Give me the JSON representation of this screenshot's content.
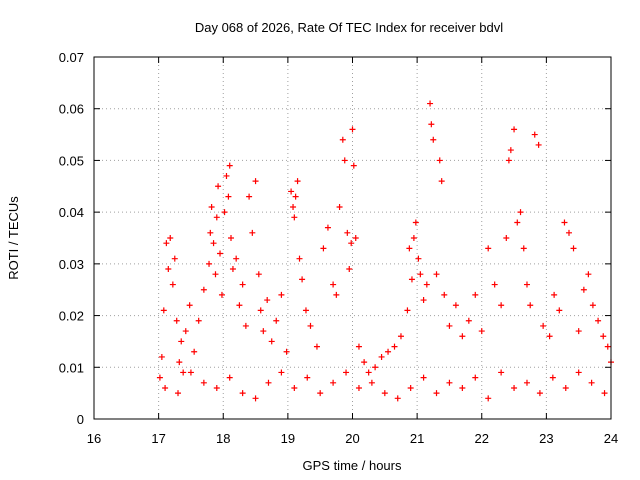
{
  "chart_data": {
    "type": "scatter",
    "title": "Day 068 of 2026, Rate Of TEC Index for receiver bdvl",
    "xlabel": "GPS time / hours",
    "ylabel": "ROTI / TECUs",
    "xlim": [
      16,
      24
    ],
    "ylim": [
      0,
      0.07
    ],
    "xticks": [
      16,
      17,
      18,
      19,
      20,
      21,
      22,
      23,
      24
    ],
    "xtick_labels": [
      "16",
      "17",
      "18",
      "19",
      "20",
      "21",
      "22",
      "23",
      "24"
    ],
    "yticks": [
      0,
      0.01,
      0.02,
      0.03,
      0.04,
      0.05,
      0.06,
      0.07
    ],
    "ytick_labels": [
      "0",
      "0.01",
      "0.02",
      "0.03",
      "0.04",
      "0.05",
      "0.06",
      "0.07"
    ],
    "grid": true,
    "marker": "+",
    "color": "#ff0000",
    "series": [
      {
        "name": "ROTI",
        "x": [
          17.02,
          17.05,
          17.08,
          17.12,
          17.15,
          17.18,
          17.22,
          17.25,
          17.28,
          17.32,
          17.35,
          17.38,
          17.42,
          17.48,
          17.55,
          17.62,
          17.7,
          17.78,
          17.8,
          17.82,
          17.85,
          17.88,
          17.9,
          17.92,
          17.95,
          17.98,
          18.02,
          18.05,
          18.08,
          18.1,
          18.12,
          18.15,
          18.2,
          18.25,
          18.3,
          18.35,
          18.4,
          18.45,
          18.5,
          18.55,
          18.58,
          18.62,
          18.68,
          18.75,
          18.82,
          18.9,
          18.98,
          19.05,
          19.08,
          19.1,
          19.12,
          19.15,
          19.18,
          19.22,
          19.28,
          19.35,
          19.45,
          19.55,
          19.62,
          19.7,
          19.75,
          19.8,
          19.85,
          19.88,
          19.92,
          19.95,
          19.98,
          20.0,
          20.02,
          20.05,
          20.1,
          20.18,
          20.25,
          20.35,
          20.45,
          20.55,
          20.65,
          20.75,
          20.85,
          20.88,
          20.92,
          20.95,
          20.98,
          21.02,
          21.05,
          21.1,
          21.15,
          21.2,
          21.22,
          21.25,
          21.3,
          21.35,
          21.38,
          21.42,
          21.5,
          21.6,
          21.7,
          21.8,
          21.9,
          22.0,
          22.1,
          22.2,
          22.3,
          22.38,
          22.42,
          22.45,
          22.5,
          22.55,
          22.6,
          22.65,
          22.7,
          22.75,
          22.82,
          22.88,
          22.95,
          23.05,
          23.12,
          23.2,
          23.28,
          23.35,
          23.42,
          23.5,
          23.58,
          23.65,
          23.72,
          23.8,
          23.88,
          23.95,
          24.0,
          17.1,
          17.3,
          17.5,
          17.7,
          17.9,
          18.1,
          18.3,
          18.5,
          18.7,
          18.9,
          19.1,
          19.3,
          19.5,
          19.7,
          19.9,
          20.1,
          20.3,
          20.5,
          20.7,
          20.9,
          21.1,
          21.3,
          21.5,
          21.7,
          21.9,
          22.1,
          22.3,
          22.5,
          22.7,
          22.9,
          23.1,
          23.3,
          23.5,
          23.7,
          23.9
        ],
        "y": [
          0.008,
          0.012,
          0.021,
          0.034,
          0.029,
          0.035,
          0.026,
          0.031,
          0.019,
          0.011,
          0.015,
          0.009,
          0.017,
          0.022,
          0.013,
          0.019,
          0.025,
          0.03,
          0.036,
          0.041,
          0.034,
          0.028,
          0.039,
          0.045,
          0.032,
          0.024,
          0.04,
          0.047,
          0.043,
          0.049,
          0.035,
          0.029,
          0.031,
          0.022,
          0.026,
          0.018,
          0.043,
          0.036,
          0.046,
          0.028,
          0.021,
          0.017,
          0.023,
          0.015,
          0.019,
          0.024,
          0.013,
          0.044,
          0.041,
          0.039,
          0.043,
          0.046,
          0.031,
          0.027,
          0.021,
          0.018,
          0.014,
          0.033,
          0.037,
          0.026,
          0.024,
          0.041,
          0.054,
          0.05,
          0.036,
          0.029,
          0.034,
          0.056,
          0.049,
          0.035,
          0.014,
          0.011,
          0.009,
          0.01,
          0.012,
          0.013,
          0.014,
          0.016,
          0.021,
          0.033,
          0.027,
          0.035,
          0.038,
          0.031,
          0.028,
          0.023,
          0.026,
          0.061,
          0.057,
          0.054,
          0.028,
          0.05,
          0.046,
          0.024,
          0.018,
          0.022,
          0.016,
          0.019,
          0.024,
          0.017,
          0.033,
          0.026,
          0.022,
          0.035,
          0.05,
          0.052,
          0.056,
          0.038,
          0.04,
          0.033,
          0.026,
          0.022,
          0.055,
          0.053,
          0.018,
          0.016,
          0.024,
          0.021,
          0.038,
          0.036,
          0.033,
          0.017,
          0.025,
          0.028,
          0.022,
          0.019,
          0.016,
          0.014,
          0.011,
          0.006,
          0.005,
          0.009,
          0.007,
          0.006,
          0.008,
          0.005,
          0.004,
          0.007,
          0.009,
          0.006,
          0.008,
          0.005,
          0.007,
          0.009,
          0.006,
          0.007,
          0.005,
          0.004,
          0.006,
          0.008,
          0.005,
          0.007,
          0.006,
          0.008,
          0.004,
          0.009,
          0.006,
          0.007,
          0.005,
          0.008,
          0.006,
          0.009,
          0.007,
          0.005
        ]
      }
    ]
  }
}
